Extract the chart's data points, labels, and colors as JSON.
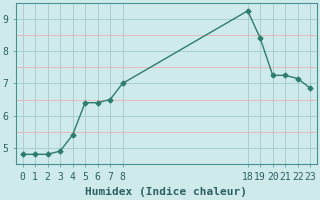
{
  "x": [
    0,
    1,
    2,
    3,
    4,
    5,
    6,
    7,
    8,
    18,
    19,
    20,
    21,
    22,
    23
  ],
  "y": [
    4.8,
    4.8,
    4.8,
    4.9,
    5.4,
    6.4,
    6.4,
    6.5,
    7.0,
    9.25,
    8.4,
    7.25,
    7.25,
    7.15,
    6.85
  ],
  "line_color": "#2d7d6e",
  "marker": "D",
  "markersize": 2.5,
  "background_color": "#ceeaea",
  "grid_color_v": "#aacfcf",
  "grid_color_h_pink": "#e8b8c0",
  "grid_color_h_teal": "#aacfcf",
  "xlabel": "Humidex (Indice chaleur)",
  "xlim": [
    -0.5,
    23.5
  ],
  "ylim": [
    4.5,
    9.5
  ],
  "yticks": [
    5,
    6,
    7,
    8,
    9
  ],
  "xticks": [
    0,
    1,
    2,
    3,
    4,
    5,
    6,
    7,
    8,
    18,
    19,
    20,
    21,
    22,
    23
  ],
  "xlabel_fontsize": 8,
  "tick_fontsize": 7
}
